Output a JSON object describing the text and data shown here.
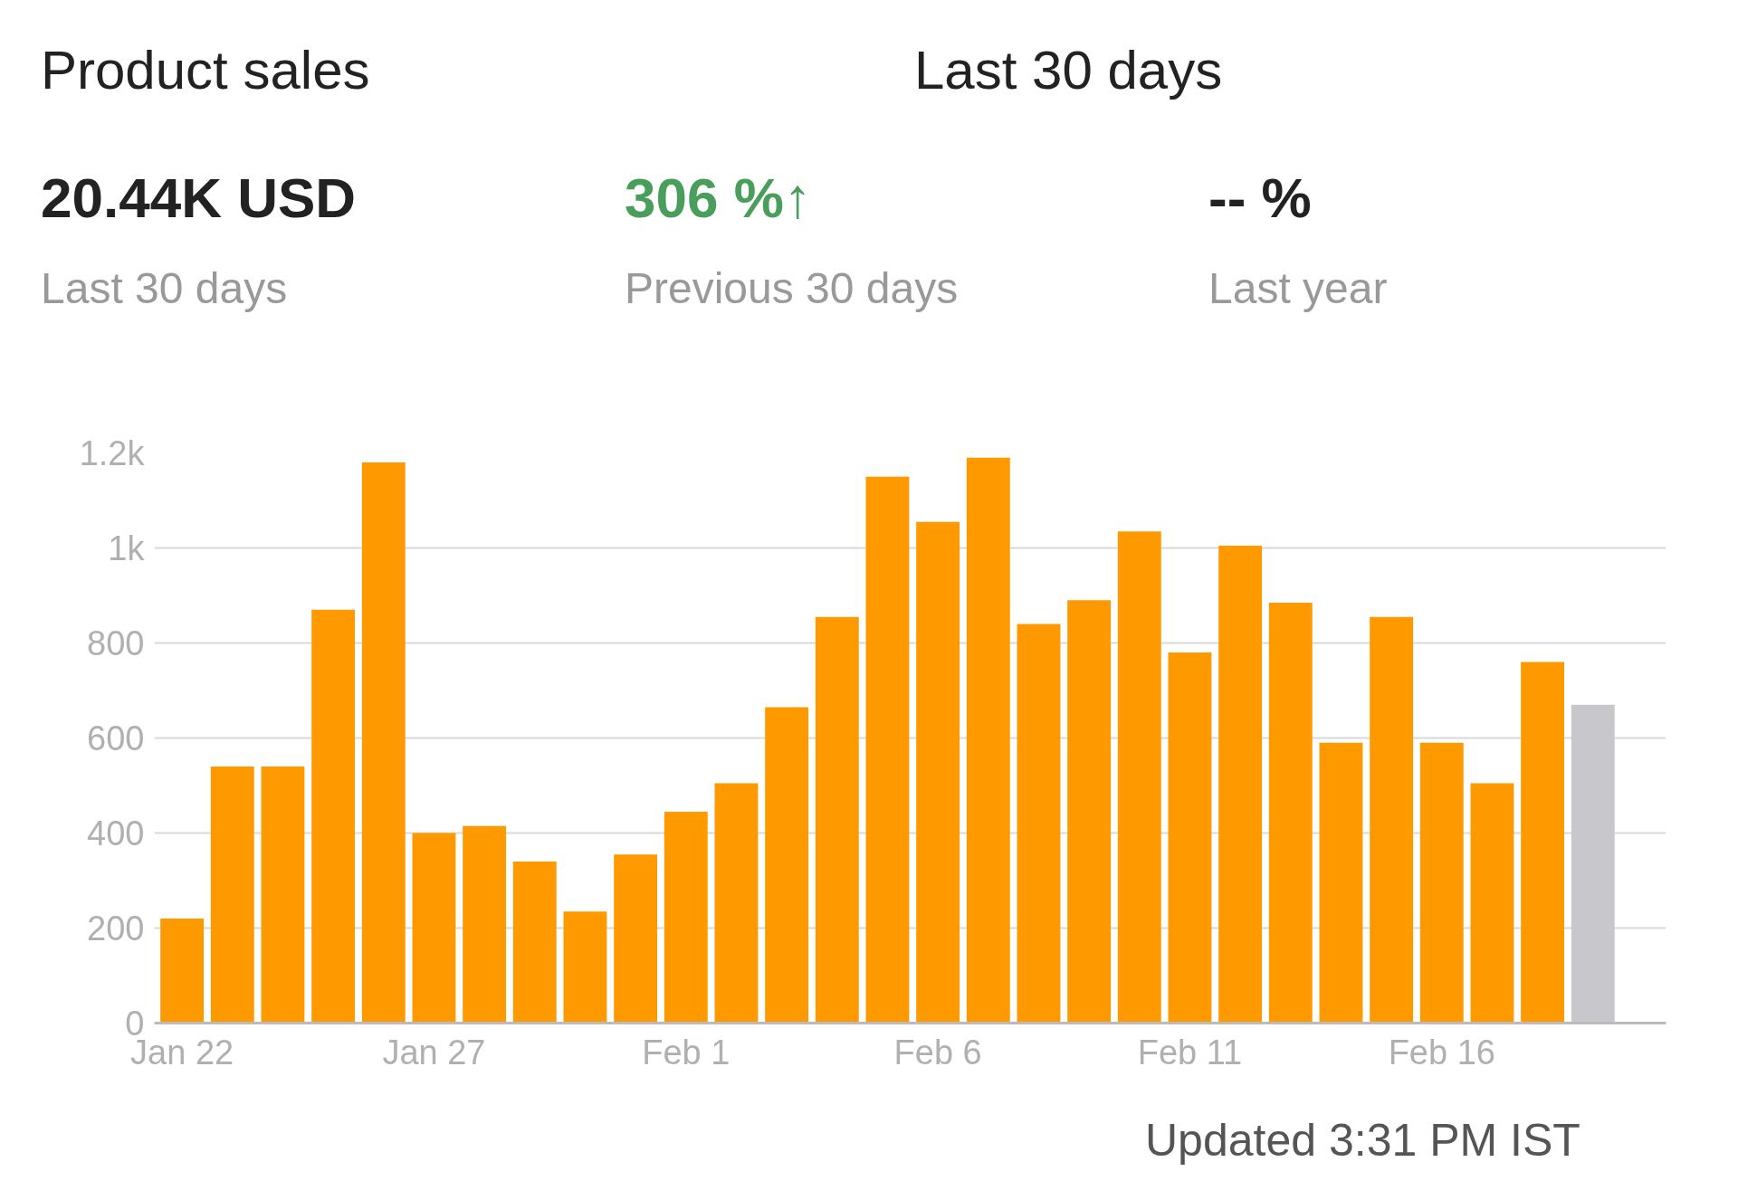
{
  "chart_data": {
    "type": "bar",
    "title": "Product sales",
    "annotations": [
      "Last 30 days",
      "20.44K USD",
      "Last 30 days",
      "306 %↑",
      "Previous 30 days",
      "-- %",
      "Last year",
      "Updated 3:31 PM IST"
    ],
    "categories": [
      "Jan 22",
      null,
      null,
      null,
      null,
      "Jan 27",
      null,
      null,
      null,
      null,
      "Feb 1",
      null,
      null,
      null,
      null,
      "Feb 6",
      null,
      null,
      null,
      null,
      "Feb 11",
      null,
      null,
      null,
      null,
      "Feb 16",
      null,
      null,
      null
    ],
    "values": [
      220,
      540,
      540,
      870,
      1180,
      400,
      415,
      340,
      235,
      355,
      445,
      505,
      665,
      855,
      1150,
      1055,
      1190,
      840,
      890,
      1035,
      780,
      1005,
      885,
      590,
      855,
      590,
      505,
      760,
      670
    ],
    "colors": [
      "#ff9900",
      "#ff9900",
      "#ff9900",
      "#ff9900",
      "#ff9900",
      "#ff9900",
      "#ff9900",
      "#ff9900",
      "#ff9900",
      "#ff9900",
      "#ff9900",
      "#ff9900",
      "#ff9900",
      "#ff9900",
      "#ff9900",
      "#ff9900",
      "#ff9900",
      "#ff9900",
      "#ff9900",
      "#ff9900",
      "#ff9900",
      "#ff9900",
      "#ff9900",
      "#ff9900",
      "#ff9900",
      "#ff9900",
      "#ff9900",
      "#ff9900",
      "#c7c7cc"
    ],
    "ylim": [
      0,
      1200
    ],
    "yticks": [
      0,
      200,
      400,
      600,
      800,
      {
        "value": 1000,
        "label": "1k"
      },
      {
        "value": 1200,
        "label": "1.2k"
      }
    ],
    "grid": "y"
  }
}
